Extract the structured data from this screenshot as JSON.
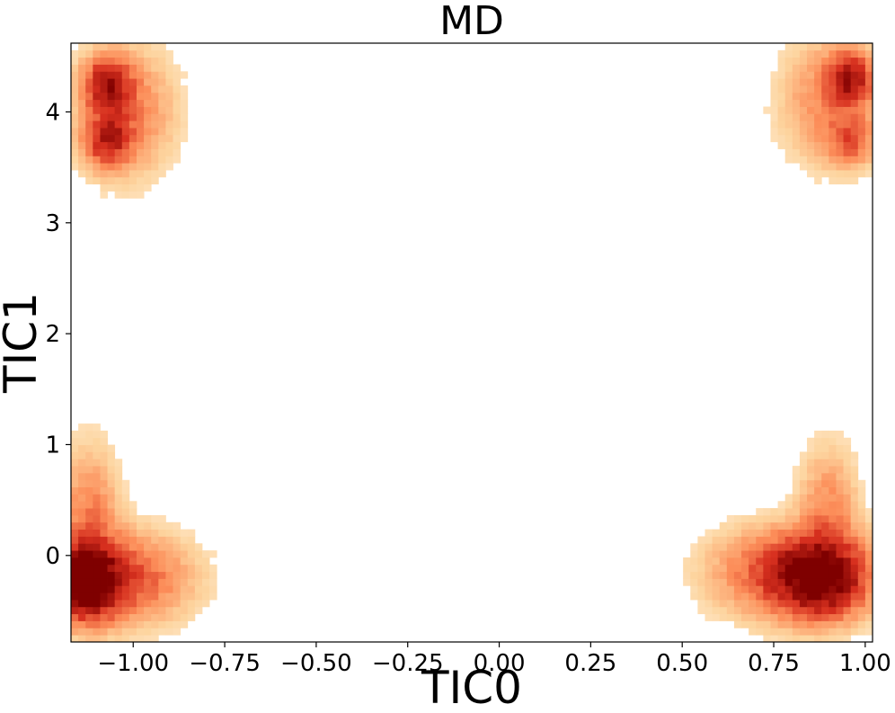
{
  "chart_data": {
    "type": "heatmap",
    "title": "MD",
    "xlabel": "TIC0",
    "ylabel": "TIC1",
    "xlim": [
      -1.17,
      1.02
    ],
    "ylim": [
      -0.78,
      4.62
    ],
    "xticks": [
      -1.0,
      -0.75,
      -0.5,
      -0.25,
      0.0,
      0.25,
      0.5,
      0.75,
      1.0
    ],
    "xtick_labels": [
      "−1.00",
      "−0.75",
      "−0.50",
      "−0.25",
      "0.00",
      "0.25",
      "0.50",
      "0.75",
      "1.00"
    ],
    "yticks": [
      0,
      1,
      2,
      3,
      4
    ],
    "ytick_labels": [
      "0",
      "1",
      "2",
      "3",
      "4"
    ],
    "colormap": "OrRd",
    "colors": [
      "#fff7ec",
      "#fdd49e",
      "#fc8d59",
      "#d7301f",
      "#7f0000"
    ],
    "grid": false,
    "density_clusters": [
      {
        "center": [
          -1.13,
          -0.25
        ],
        "spread": [
          0.06,
          0.2
        ],
        "peak": 1.0
      },
      {
        "center": [
          -1.05,
          -0.2
        ],
        "spread": [
          0.12,
          0.25
        ],
        "peak": 0.5
      },
      {
        "center": [
          -1.12,
          0.3
        ],
        "spread": [
          0.05,
          0.4
        ],
        "peak": 0.3
      },
      {
        "center": [
          0.88,
          -0.2
        ],
        "spread": [
          0.08,
          0.22
        ],
        "peak": 1.0
      },
      {
        "center": [
          0.78,
          -0.15
        ],
        "spread": [
          0.12,
          0.25
        ],
        "peak": 0.45
      },
      {
        "center": [
          0.9,
          0.4
        ],
        "spread": [
          0.05,
          0.35
        ],
        "peak": 0.25
      },
      {
        "center": [
          -1.07,
          4.25
        ],
        "spread": [
          0.04,
          0.15
        ],
        "peak": 0.75
      },
      {
        "center": [
          -1.07,
          3.75
        ],
        "spread": [
          0.04,
          0.15
        ],
        "peak": 0.6
      },
      {
        "center": [
          -1.02,
          4.0
        ],
        "spread": [
          0.08,
          0.35
        ],
        "peak": 0.3
      },
      {
        "center": [
          0.96,
          4.3
        ],
        "spread": [
          0.04,
          0.15
        ],
        "peak": 0.7
      },
      {
        "center": [
          0.96,
          3.75
        ],
        "spread": [
          0.04,
          0.15
        ],
        "peak": 0.35
      },
      {
        "center": [
          0.9,
          4.1
        ],
        "spread": [
          0.08,
          0.35
        ],
        "peak": 0.25
      }
    ]
  }
}
